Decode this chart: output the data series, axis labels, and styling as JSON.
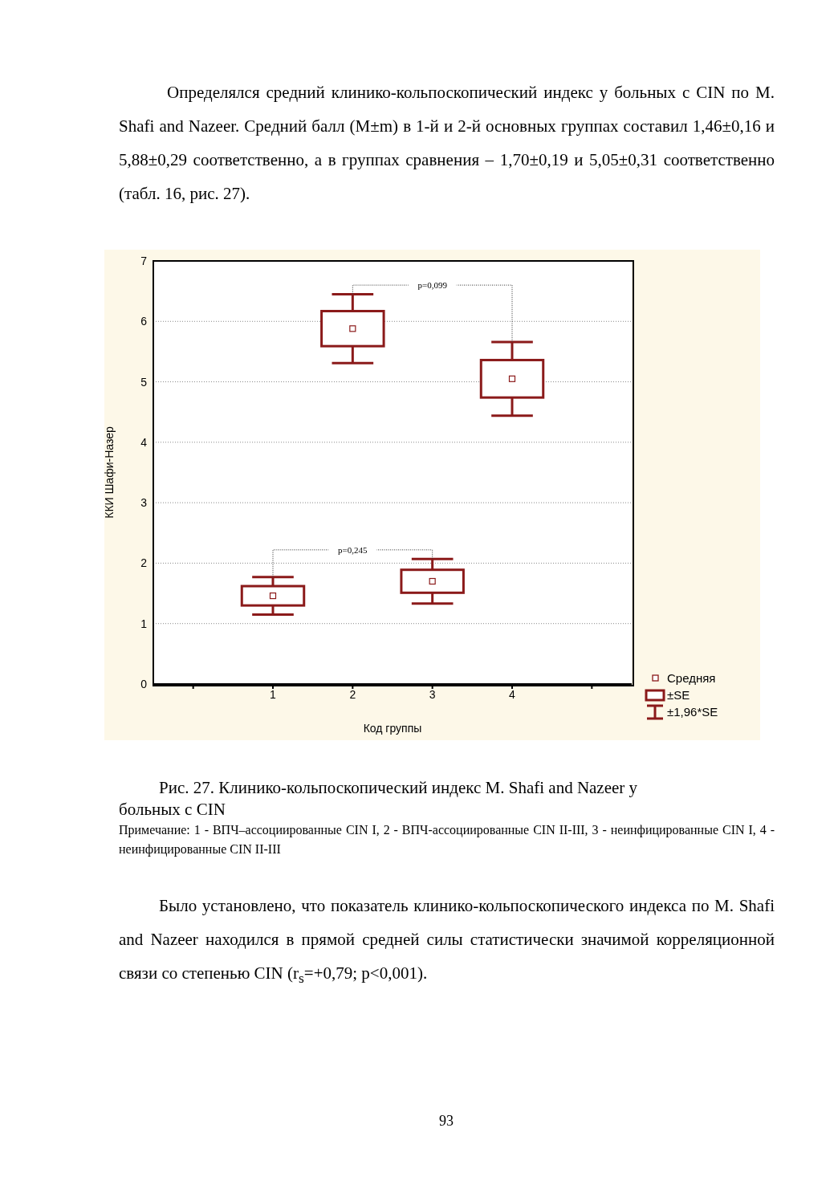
{
  "chart_data": {
    "type": "box",
    "title": "Рис. 27. Клинико-кольпоскопический индекс M. Shafi and Nazeer у больных с CIN",
    "xlabel": "Код группы",
    "ylabel": "ККИ Шафи-Назер",
    "categories": [
      null,
      "1",
      "2",
      "3",
      "4",
      null
    ],
    "color": "#8b1a1a",
    "boxes": [
      null,
      {
        "low": 1.15,
        "q1": 1.3,
        "median": 1.46,
        "q3": 1.62,
        "high": 1.77
      },
      {
        "low": 5.31,
        "q1": 5.59,
        "median": 5.88,
        "q3": 6.17,
        "high": 6.45
      },
      {
        "low": 1.33,
        "q1": 1.51,
        "median": 1.7,
        "q3": 1.89,
        "high": 2.07
      },
      {
        "low": 4.44,
        "q1": 4.74,
        "median": 5.05,
        "q3": 5.36,
        "high": 5.66
      },
      null
    ],
    "ylim": [
      0,
      7
    ],
    "yticks": [
      0,
      1,
      2,
      3,
      4,
      5,
      6,
      7
    ],
    "grid": "y",
    "annotations": [
      "p=0,099",
      "p=0,245",
      "Средняя",
      "±SE",
      "±1,96*SE",
      "Определялся средний клинико-кольпоскопический индекс у больных с CIN по M. Shafi and Nazeer. Средний балл (M±m) в 1-й и 2-й основных группах составил 1,46±0,16 и 5,88±0,29 соответственно, а в группах сравнения – 1,70±0,19 и 5,05±0,31 соответственно (табл. 16, рис. 27).",
      "Примечание: 1 - ВПЧ–ассоциированные CIN I, 2 - ВПЧ-ассоциированные CIN II-III, 3 - неинфицированные CIN I, 4 - неинфицированные CIN II-III",
      "Было установлено, что показатель клинико-кольпоскопического индекса по M. Shafi and Nazeer находился в прямой средней силы статистически значимой корреляционной связи со степенью CIN (r$_{s}$=+0,79; p<0,001).",
      "93"
    ]
  }
}
